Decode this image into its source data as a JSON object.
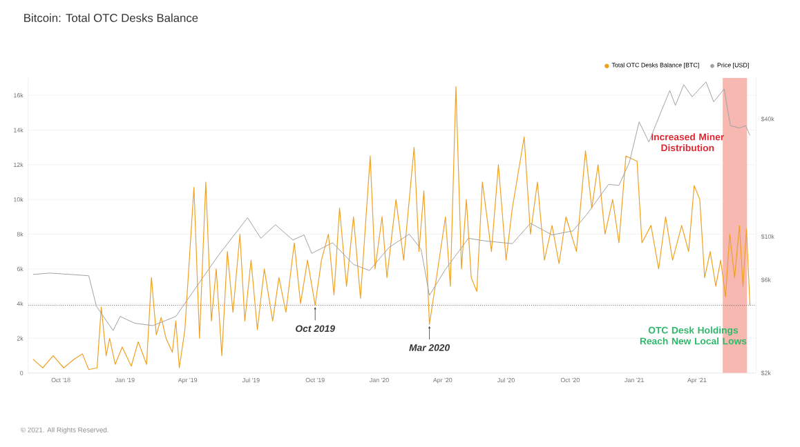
{
  "chart_data": {
    "type": "line",
    "title": "Bitcoin: Total OTC Desks Balance",
    "xlim": [
      "2018-08-15",
      "2021-06-25"
    ],
    "xticks": [
      {
        "value": "2018-10-01",
        "label": "Oct '18"
      },
      {
        "value": "2019-01-01",
        "label": "Jan '19"
      },
      {
        "value": "2019-04-01",
        "label": "Apr '19"
      },
      {
        "value": "2019-07-01",
        "label": "Jul '19"
      },
      {
        "value": "2019-10-01",
        "label": "Oct '19"
      },
      {
        "value": "2020-01-01",
        "label": "Jan '20"
      },
      {
        "value": "2020-04-01",
        "label": "Apr '20"
      },
      {
        "value": "2020-07-01",
        "label": "Jul '20"
      },
      {
        "value": "2020-10-01",
        "label": "Oct '20"
      },
      {
        "value": "2021-01-01",
        "label": "Jan '21"
      },
      {
        "value": "2021-04-01",
        "label": "Apr '21"
      }
    ],
    "ylim": [
      0,
      17000
    ],
    "yticks": [
      0,
      {
        "value": 2000,
        "label": "2k"
      },
      {
        "value": 4000,
        "label": "4k"
      },
      {
        "value": 6000,
        "label": "6k"
      },
      {
        "value": 8000,
        "label": "8k"
      },
      {
        "value": 10000,
        "label": "10k"
      },
      {
        "value": 12000,
        "label": "12k"
      },
      {
        "value": 14000,
        "label": "14k"
      },
      {
        "value": 16000,
        "label": "16k"
      }
    ],
    "y2lim": [
      2000,
      65000
    ],
    "y2ticks": [
      {
        "value": 2000,
        "label": "$2k"
      },
      {
        "value": 6000,
        "label": "$6k"
      },
      {
        "value": 10000,
        "label": "$10k"
      },
      {
        "value": 40000,
        "label": "$40k"
      }
    ],
    "log": "y2",
    "grid": "y",
    "legend": "top right",
    "series": [
      {
        "name": "Total OTC Desks Balance [BTC]",
        "color": "#f0a020",
        "x": [
          "2018-08-22",
          "2018-09-05",
          "2018-09-20",
          "2018-10-05",
          "2018-10-20",
          "2018-11-01",
          "2018-11-10",
          "2018-11-22",
          "2018-11-28",
          "2018-12-05",
          "2018-12-10",
          "2018-12-18",
          "2018-12-28",
          "2019-01-10",
          "2019-01-20",
          "2019-02-01",
          "2019-02-08",
          "2019-02-15",
          "2019-02-22",
          "2019-03-01",
          "2019-03-10",
          "2019-03-15",
          "2019-03-20",
          "2019-03-28",
          "2019-04-10",
          "2019-04-18",
          "2019-04-27",
          "2019-05-05",
          "2019-05-12",
          "2019-05-20",
          "2019-05-28",
          "2019-06-05",
          "2019-06-15",
          "2019-06-22",
          "2019-07-01",
          "2019-07-10",
          "2019-07-20",
          "2019-08-01",
          "2019-08-10",
          "2019-08-20",
          "2019-09-01",
          "2019-09-10",
          "2019-09-20",
          "2019-10-01",
          "2019-10-10",
          "2019-10-20",
          "2019-10-28",
          "2019-11-05",
          "2019-11-15",
          "2019-11-25",
          "2019-12-05",
          "2019-12-19",
          "2019-12-26",
          "2020-01-05",
          "2020-01-12",
          "2020-01-25",
          "2020-02-05",
          "2020-02-20",
          "2020-02-27",
          "2020-03-05",
          "2020-03-13",
          "2020-03-25",
          "2020-04-05",
          "2020-04-12",
          "2020-04-20",
          "2020-04-28",
          "2020-05-05",
          "2020-05-12",
          "2020-05-20",
          "2020-05-28",
          "2020-06-10",
          "2020-06-20",
          "2020-07-01",
          "2020-07-10",
          "2020-07-27",
          "2020-08-05",
          "2020-08-15",
          "2020-08-25",
          "2020-09-05",
          "2020-09-15",
          "2020-09-25",
          "2020-10-10",
          "2020-10-23",
          "2020-11-01",
          "2020-11-10",
          "2020-11-20",
          "2020-12-01",
          "2020-12-10",
          "2020-12-20",
          "2021-01-05",
          "2021-01-12",
          "2021-01-25",
          "2021-02-05",
          "2021-02-15",
          "2021-02-25",
          "2021-03-10",
          "2021-03-20",
          "2021-03-28",
          "2021-04-05",
          "2021-04-12",
          "2021-04-20",
          "2021-04-28",
          "2021-05-05",
          "2021-05-12",
          "2021-05-18",
          "2021-05-25",
          "2021-06-01",
          "2021-06-06",
          "2021-06-11",
          "2021-06-16"
        ],
        "values": [
          800,
          300,
          1000,
          300,
          800,
          1100,
          200,
          300,
          3800,
          1000,
          2000,
          500,
          1500,
          400,
          1800,
          500,
          5500,
          2200,
          3200,
          2000,
          1200,
          3000,
          300,
          2500,
          10700,
          2000,
          11000,
          3000,
          6000,
          1000,
          7000,
          3500,
          8000,
          3000,
          6500,
          2500,
          6000,
          3000,
          5500,
          3500,
          7500,
          4000,
          6500,
          3900,
          6500,
          8000,
          4500,
          9500,
          5000,
          9000,
          4300,
          12500,
          6000,
          9000,
          5500,
          10000,
          6500,
          13000,
          7000,
          10500,
          2800,
          6000,
          9000,
          5000,
          16500,
          6000,
          10000,
          5500,
          4700,
          11000,
          7000,
          12000,
          6500,
          9500,
          13600,
          8000,
          11000,
          6500,
          8500,
          6300,
          9000,
          7000,
          12800,
          9500,
          12000,
          8000,
          10000,
          7500,
          12500,
          12200,
          7500,
          8500,
          6000,
          9000,
          6500,
          8500,
          7000,
          10800,
          10000,
          5500,
          7000,
          5000,
          6500,
          4400,
          8000,
          5500,
          8500,
          5000,
          8300,
          3900
        ]
      },
      {
        "name": "Price [USD]",
        "color": "#a0a0a0",
        "axis": "y2",
        "x": [
          "2018-08-22",
          "2018-09-15",
          "2018-10-15",
          "2018-11-10",
          "2018-11-21",
          "2018-12-15",
          "2018-12-25",
          "2019-01-15",
          "2019-02-10",
          "2019-03-15",
          "2019-04-05",
          "2019-05-15",
          "2019-06-26",
          "2019-07-15",
          "2019-08-05",
          "2019-08-30",
          "2019-09-15",
          "2019-09-26",
          "2019-10-26",
          "2019-11-25",
          "2019-12-18",
          "2020-01-15",
          "2020-02-13",
          "2020-03-01",
          "2020-03-13",
          "2020-04-05",
          "2020-05-08",
          "2020-06-01",
          "2020-07-10",
          "2020-08-05",
          "2020-09-05",
          "2020-10-05",
          "2020-10-25",
          "2020-11-25",
          "2020-12-10",
          "2020-12-25",
          "2021-01-08",
          "2021-01-22",
          "2021-02-10",
          "2021-02-21",
          "2021-03-01",
          "2021-03-13",
          "2021-03-25",
          "2021-04-14",
          "2021-04-25",
          "2021-05-10",
          "2021-05-19",
          "2021-06-01",
          "2021-06-10",
          "2021-06-16"
        ],
        "values": [
          6400,
          6500,
          6400,
          6300,
          4400,
          3300,
          3900,
          3600,
          3500,
          3900,
          5000,
          8000,
          12500,
          9800,
          11500,
          9600,
          10200,
          8200,
          9300,
          7200,
          6700,
          8800,
          10300,
          8600,
          5000,
          6800,
          9800,
          9500,
          9200,
          11700,
          10200,
          10700,
          13000,
          18500,
          18300,
          24000,
          38700,
          30500,
          45000,
          56000,
          47000,
          60000,
          52000,
          62000,
          49000,
          57000,
          37000,
          36000,
          37000,
          33000
        ]
      }
    ],
    "ref_lines": [
      {
        "axis": "y",
        "value": 3900,
        "label": "OTC Desk Holdings Reach New Local Lows",
        "color": "#555555",
        "line_style": "dotted"
      }
    ],
    "bands": [
      {
        "axis": "x",
        "from": "2021-05-08",
        "to": "2021-06-12",
        "label": "Increased Miner Distribution",
        "color": "#f6b8b0"
      }
    ],
    "annotations": [
      {
        "text": "Oct 2019",
        "x": "2019-10-01",
        "y": 3900
      },
      {
        "text": "Mar 2020",
        "x": "2020-03-13",
        "y": 2800
      },
      "© 2021. All Rights Reserved."
    ]
  }
}
